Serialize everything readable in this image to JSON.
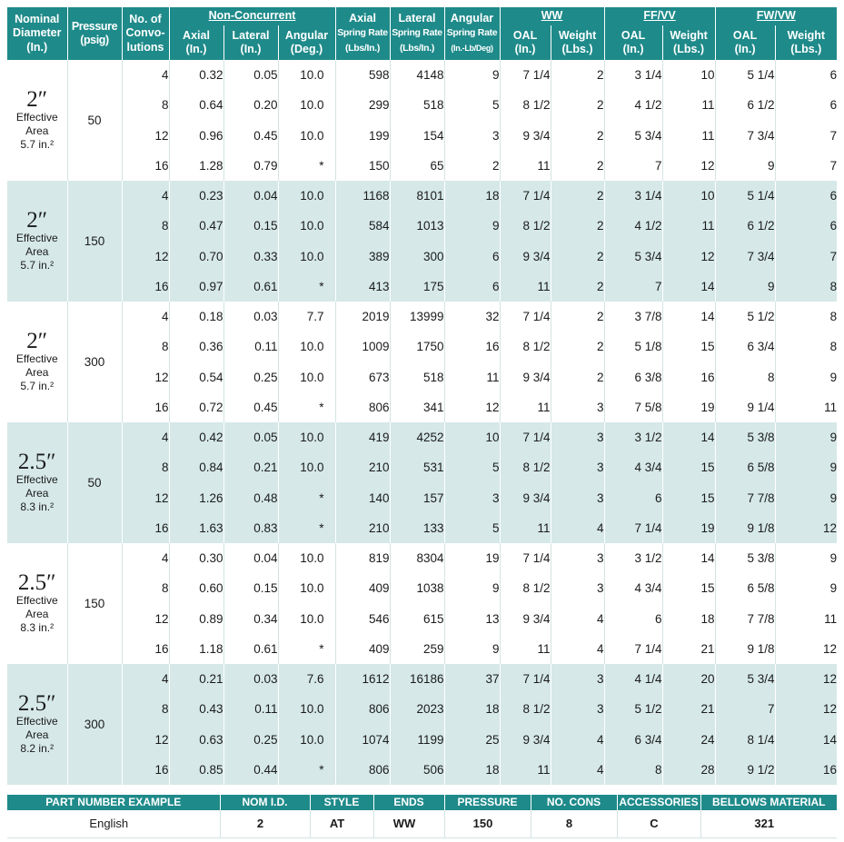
{
  "header": {
    "nominal_diameter": [
      "Nominal",
      "Diameter",
      "(In.)"
    ],
    "pressure": [
      "Pressure",
      "(psig)"
    ],
    "convolutions": [
      "No. of",
      "Convo-",
      "lutions"
    ],
    "non_concurrent": "Non-Concurrent",
    "axial": [
      "Axial",
      "(In.)"
    ],
    "lateral": [
      "Lateral",
      "(In.)"
    ],
    "angular": [
      "Angular",
      "(Deg.)"
    ],
    "axial_spring": [
      "Axial",
      "Spring Rate",
      "(Lbs/In.)"
    ],
    "lateral_spring": [
      "Lateral",
      "Spring Rate",
      "(Lbs/In.)"
    ],
    "angular_spring": [
      "Angular",
      "Spring Rate",
      "(In.-Lb/Deg)"
    ],
    "ww": "WW",
    "ff_vv": "FF/VV",
    "fw_vw": "FW/VW",
    "oal": [
      "OAL",
      "(In.)"
    ],
    "weight": [
      "Weight",
      "(Lbs.)"
    ]
  },
  "groups": [
    {
      "diameter": "2″",
      "effective_label": "Effective Area",
      "effective_area": "5.7 in.²",
      "pressure": "50",
      "shaded": false,
      "rows": [
        [
          "4",
          "0.32",
          "0.05",
          "10.0",
          "598",
          "4148",
          "9",
          "7 1/4",
          "2",
          "3 1/4",
          "10",
          "5 1/4",
          "6"
        ],
        [
          "8",
          "0.64",
          "0.20",
          "10.0",
          "299",
          "518",
          "5",
          "8 1/2",
          "2",
          "4 1/2",
          "11",
          "6 1/2",
          "6"
        ],
        [
          "12",
          "0.96",
          "0.45",
          "10.0",
          "199",
          "154",
          "3",
          "9 3/4",
          "2",
          "5 3/4",
          "11",
          "7 3/4",
          "7"
        ],
        [
          "16",
          "1.28",
          "0.79",
          "*",
          "150",
          "65",
          "2",
          "11",
          "2",
          "7",
          "12",
          "9",
          "7"
        ]
      ]
    },
    {
      "diameter": "2″",
      "effective_label": "Effective Area",
      "effective_area": "5.7 in.²",
      "pressure": "150",
      "shaded": true,
      "rows": [
        [
          "4",
          "0.23",
          "0.04",
          "10.0",
          "1168",
          "8101",
          "18",
          "7 1/4",
          "2",
          "3 1/4",
          "10",
          "5 1/4",
          "6"
        ],
        [
          "8",
          "0.47",
          "0.15",
          "10.0",
          "584",
          "1013",
          "9",
          "8 1/2",
          "2",
          "4 1/2",
          "11",
          "6 1/2",
          "6"
        ],
        [
          "12",
          "0.70",
          "0.33",
          "10.0",
          "389",
          "300",
          "6",
          "9 3/4",
          "2",
          "5 3/4",
          "12",
          "7 3/4",
          "7"
        ],
        [
          "16",
          "0.97",
          "0.61",
          "*",
          "413",
          "175",
          "6",
          "11",
          "2",
          "7",
          "14",
          "9",
          "8"
        ]
      ]
    },
    {
      "diameter": "2″",
      "effective_label": "Effective Area",
      "effective_area": "5.7 in.²",
      "pressure": "300",
      "shaded": false,
      "rows": [
        [
          "4",
          "0.18",
          "0.03",
          "7.7",
          "2019",
          "13999",
          "32",
          "7 1/4",
          "2",
          "3 7/8",
          "14",
          "5 1/2",
          "8"
        ],
        [
          "8",
          "0.36",
          "0.11",
          "10.0",
          "1009",
          "1750",
          "16",
          "8 1/2",
          "2",
          "5 1/8",
          "15",
          "6 3/4",
          "8"
        ],
        [
          "12",
          "0.54",
          "0.25",
          "10.0",
          "673",
          "518",
          "11",
          "9 3/4",
          "2",
          "6 3/8",
          "16",
          "8",
          "9"
        ],
        [
          "16",
          "0.72",
          "0.45",
          "*",
          "806",
          "341",
          "12",
          "11",
          "3",
          "7 5/8",
          "19",
          "9 1/4",
          "11"
        ]
      ]
    },
    {
      "diameter": "2.5″",
      "effective_label": "Effective Area",
      "effective_area": "8.3 in.²",
      "pressure": "50",
      "shaded": true,
      "rows": [
        [
          "4",
          "0.42",
          "0.05",
          "10.0",
          "419",
          "4252",
          "10",
          "7 1/4",
          "3",
          "3 1/2",
          "14",
          "5 3/8",
          "9"
        ],
        [
          "8",
          "0.84",
          "0.21",
          "10.0",
          "210",
          "531",
          "5",
          "8 1/2",
          "3",
          "4 3/4",
          "15",
          "6 5/8",
          "9"
        ],
        [
          "12",
          "1.26",
          "0.48",
          "*",
          "140",
          "157",
          "3",
          "9 3/4",
          "3",
          "6",
          "15",
          "7 7/8",
          "9"
        ],
        [
          "16",
          "1.63",
          "0.83",
          "*",
          "210",
          "133",
          "5",
          "11",
          "4",
          "7 1/4",
          "19",
          "9 1/8",
          "12"
        ]
      ]
    },
    {
      "diameter": "2.5″",
      "effective_label": "Effective Area",
      "effective_area": "8.3 in.²",
      "pressure": "150",
      "shaded": false,
      "rows": [
        [
          "4",
          "0.30",
          "0.04",
          "10.0",
          "819",
          "8304",
          "19",
          "7 1/4",
          "3",
          "3 1/2",
          "14",
          "5 3/8",
          "9"
        ],
        [
          "8",
          "0.60",
          "0.15",
          "10.0",
          "409",
          "1038",
          "9",
          "8 1/2",
          "3",
          "4 3/4",
          "15",
          "6 5/8",
          "9"
        ],
        [
          "12",
          "0.89",
          "0.34",
          "10.0",
          "546",
          "615",
          "13",
          "9 3/4",
          "4",
          "6",
          "18",
          "7 7/8",
          "11"
        ],
        [
          "16",
          "1.18",
          "0.61",
          "*",
          "409",
          "259",
          "9",
          "11",
          "4",
          "7 1/4",
          "21",
          "9 1/8",
          "12"
        ]
      ]
    },
    {
      "diameter": "2.5″",
      "effective_label": "Effective Area",
      "effective_area": "8.2 in.²",
      "pressure": "300",
      "shaded": true,
      "rows": [
        [
          "4",
          "0.21",
          "0.03",
          "7.6",
          "1612",
          "16186",
          "37",
          "7 1/4",
          "3",
          "4 1/4",
          "20",
          "5 3/4",
          "12"
        ],
        [
          "8",
          "0.43",
          "0.11",
          "10.0",
          "806",
          "2023",
          "18",
          "8 1/2",
          "3",
          "5 1/2",
          "21",
          "7",
          "12"
        ],
        [
          "12",
          "0.63",
          "0.25",
          "10.0",
          "1074",
          "1199",
          "25",
          "9 3/4",
          "4",
          "6 3/4",
          "24",
          "8 1/4",
          "14"
        ],
        [
          "16",
          "0.85",
          "0.44",
          "*",
          "806",
          "506",
          "18",
          "11",
          "4",
          "8",
          "28",
          "9 1/2",
          "16"
        ]
      ]
    }
  ],
  "part_number": {
    "headers": [
      "PART NUMBER EXAMPLE",
      "NOM I.D.",
      "STYLE",
      "ENDS",
      "PRESSURE",
      "NO. CONS",
      "ACCESSORIES",
      "BELLOWS MATERIAL"
    ],
    "values": [
      "English",
      "2",
      "AT",
      "WW",
      "150",
      "8",
      "C",
      "321"
    ]
  }
}
